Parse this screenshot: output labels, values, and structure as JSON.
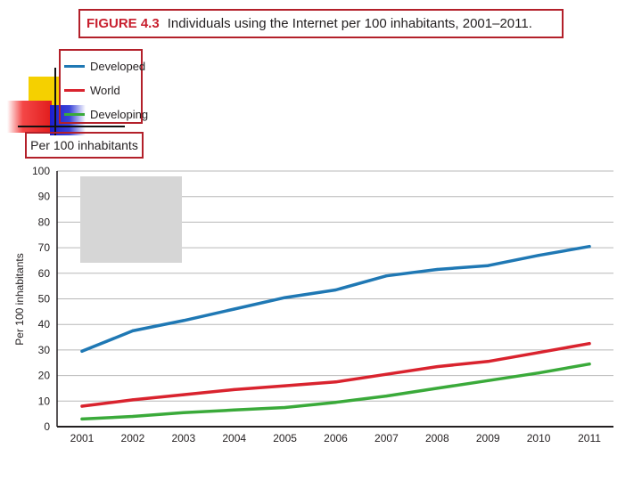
{
  "title": {
    "figure_label": "FIGURE 4.3",
    "text": "Individuals using the Internet per 100 inhabitants, 2001–2011."
  },
  "unit_label": "Per 100 inhabitants",
  "colors": {
    "developed": "#1f78b4",
    "world": "#d9232e",
    "developing": "#3aaa3a",
    "frame": "#b3202a",
    "grid": "#b8b8b8"
  },
  "chart_data": {
    "type": "line",
    "title": "Individuals using the Internet per 100 inhabitants, 2001–2011.",
    "xlabel": "",
    "ylabel": "Per 100 inhabitants",
    "categories": [
      "2001",
      "2002",
      "2003",
      "2004",
      "2005",
      "2006",
      "2007",
      "2008",
      "2009",
      "2010",
      "2011"
    ],
    "ylim": [
      0,
      100
    ],
    "yticks": [
      0,
      10,
      20,
      30,
      40,
      50,
      60,
      70,
      80,
      90,
      100
    ],
    "grid": true,
    "legend_position": "top-left",
    "series": [
      {
        "name": "Developed",
        "color": "#1f78b4",
        "values": [
          29.5,
          37.5,
          41.5,
          46,
          50.5,
          53.5,
          59,
          61.5,
          63,
          67,
          70.5
        ]
      },
      {
        "name": "World",
        "color": "#d9232e",
        "values": [
          8,
          10.5,
          12.5,
          14.5,
          16,
          17.5,
          20.5,
          23.5,
          25.5,
          29,
          32.5
        ]
      },
      {
        "name": "Developing",
        "color": "#3aaa3a",
        "values": [
          3,
          4,
          5.5,
          6.5,
          7.5,
          9.5,
          12,
          15,
          18,
          21,
          24.5
        ]
      }
    ]
  }
}
